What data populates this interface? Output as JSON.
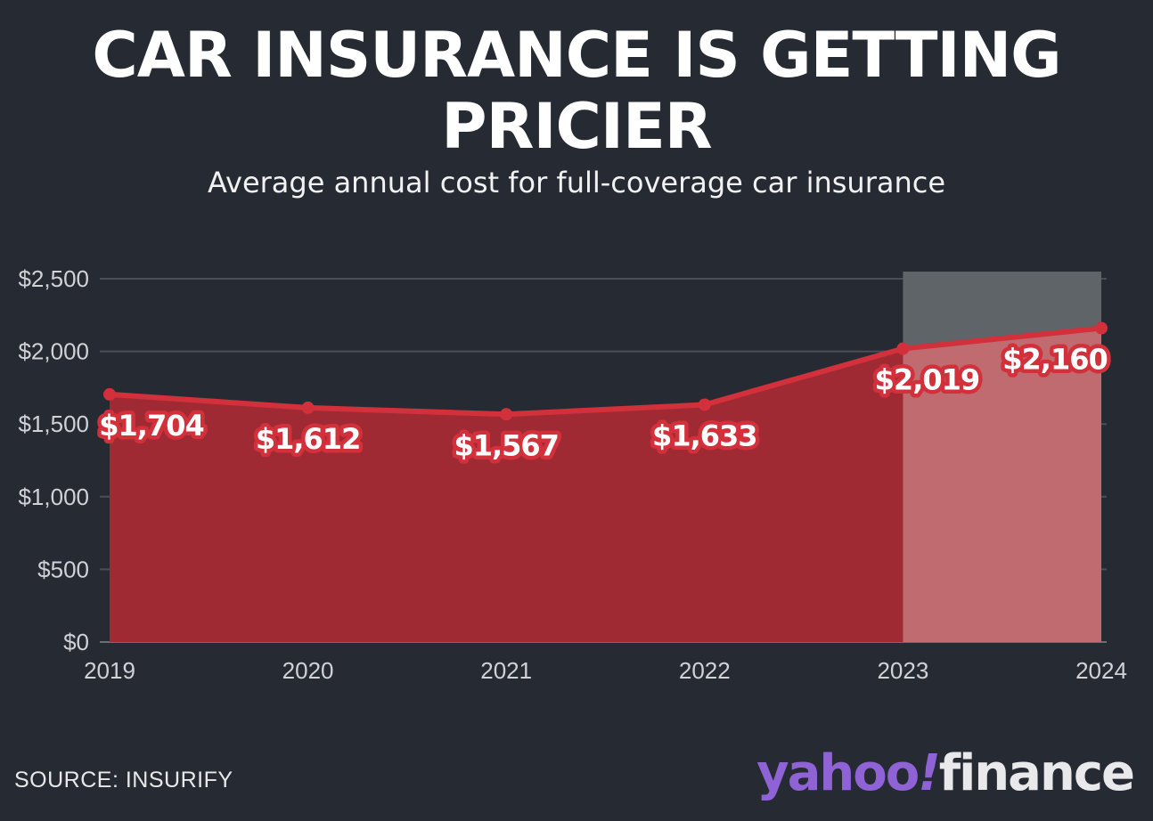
{
  "header": {
    "title_line1": "CAR INSURANCE IS GETTING",
    "title_line2": "PRICIER",
    "subtitle": "Average annual cost for full-coverage car insurance"
  },
  "footer": {
    "source": "SOURCE: INSURIFY",
    "logo_yahoo": "yahoo",
    "logo_bang": "!",
    "logo_finance": "finance"
  },
  "colors": {
    "background": "#262b33",
    "line": "#d2303a",
    "area": "#9f2a33",
    "area_projected": "#bf6b70",
    "projected_band": "#5f6469",
    "grid": "#4a4f56",
    "tick_text": "#cfd2d6",
    "brand_purple": "#8f63d6"
  },
  "chart_data": {
    "type": "area",
    "title": "CAR INSURANCE IS GETTING PRICIER",
    "subtitle": "Average annual cost for full-coverage car insurance",
    "x": [
      "2019",
      "2020",
      "2021",
      "2022",
      "2023",
      "2024"
    ],
    "values": [
      1704,
      1612,
      1567,
      1633,
      2019,
      2160
    ],
    "data_labels": [
      "$1,704",
      "$1,612",
      "$1,567",
      "$1,633",
      "$2,019",
      "$2,160"
    ],
    "y_ticks": [
      0,
      500,
      1000,
      1500,
      2000,
      2500
    ],
    "y_tick_labels": [
      "$0",
      "$500",
      "$1,000",
      "$1,500",
      "$2,000",
      "$2,500"
    ],
    "ylim": [
      0,
      2500
    ],
    "grid": true,
    "legend": "none",
    "highlight_range": [
      "2023",
      "2024"
    ],
    "source": "SOURCE: INSURIFY"
  }
}
